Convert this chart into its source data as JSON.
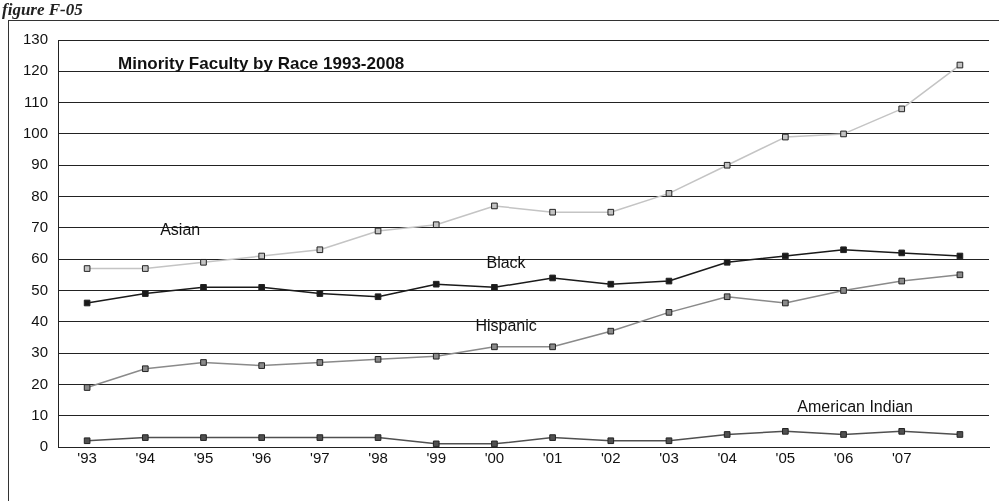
{
  "chart_data": {
    "type": "line",
    "title": "Minority Faculty by Race 1993-2008",
    "categories": [
      "'93",
      "'94",
      "'95",
      "'96",
      "'97",
      "'98",
      "'99",
      "'00",
      "'01",
      "'02",
      "'03",
      "'04",
      "'05",
      "'06",
      "'07",
      null
    ],
    "series": [
      {
        "name": "Asian",
        "color": "#c4c4c4",
        "values": [
          57,
          57,
          59,
          61,
          63,
          69,
          71,
          77,
          75,
          75,
          81,
          90,
          99,
          100,
          108,
          122
        ]
      },
      {
        "name": "Black",
        "color": "#1a1a1a",
        "values": [
          46,
          49,
          51,
          51,
          49,
          48,
          52,
          51,
          54,
          52,
          53,
          59,
          61,
          63,
          62,
          61
        ]
      },
      {
        "name": "Hispanic",
        "color": "#8a8a8a",
        "values": [
          19,
          25,
          27,
          26,
          27,
          28,
          29,
          32,
          32,
          37,
          43,
          48,
          46,
          50,
          53,
          55
        ]
      },
      {
        "name": "American Indian",
        "color": "#505050",
        "values": [
          2,
          3,
          3,
          3,
          3,
          3,
          1,
          1,
          3,
          2,
          2,
          4,
          5,
          4,
          5,
          4
        ]
      }
    ],
    "ylim": [
      0,
      130
    ],
    "yticks": [
      0,
      10,
      20,
      30,
      40,
      50,
      60,
      70,
      80,
      90,
      100,
      110,
      120,
      130
    ],
    "grid": "y",
    "legend": false,
    "marker": "square",
    "line_style": "solid",
    "annotations": [
      "figure F-05"
    ]
  }
}
